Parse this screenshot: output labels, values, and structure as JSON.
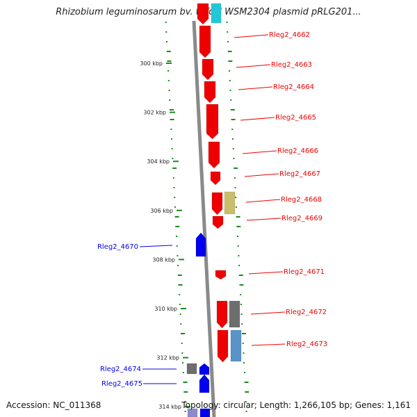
{
  "title": "Rhizobium leguminosarum bv. trifolii WSM2304 plasmid pRLG201...",
  "accession": "Accession: NC_011368",
  "summary": "Topology: circular; Length: 1,266,105 bp; Genes: 1,161",
  "colors": {
    "forward_gene": "#ee0000",
    "reverse_gene": "#0000ee",
    "backbone": "#8a8a8a",
    "gc_dots": "#1a8a1a",
    "olive": "#c9be6c",
    "gray": "#6e6e6e",
    "steelblue": "#5a93c8",
    "cyan": "#22c8d8"
  },
  "ticks": [
    {
      "label": "300 kbp",
      "kbp": 300
    },
    {
      "label": "302 kbp",
      "kbp": 302
    },
    {
      "label": "304 kbp",
      "kbp": 304
    },
    {
      "label": "306 kbp",
      "kbp": 306
    },
    {
      "label": "308 kbp",
      "kbp": 308
    },
    {
      "label": "310 kbp",
      "kbp": 310
    },
    {
      "label": "312 kbp",
      "kbp": 312
    },
    {
      "label": "314 kbp",
      "kbp": 314
    }
  ],
  "labels": [
    {
      "name": "Rleg2_4662",
      "strand": "forward"
    },
    {
      "name": "Rleg2_4663",
      "strand": "forward"
    },
    {
      "name": "Rleg2_4664",
      "strand": "forward"
    },
    {
      "name": "Rleg2_4665",
      "strand": "forward"
    },
    {
      "name": "Rleg2_4666",
      "strand": "forward"
    },
    {
      "name": "Rleg2_4667",
      "strand": "forward"
    },
    {
      "name": "Rleg2_4668",
      "strand": "forward"
    },
    {
      "name": "Rleg2_4669",
      "strand": "forward"
    },
    {
      "name": "Rleg2_4670",
      "strand": "reverse"
    },
    {
      "name": "Rleg2_4671",
      "strand": "forward"
    },
    {
      "name": "Rleg2_4672",
      "strand": "forward"
    },
    {
      "name": "Rleg2_4673",
      "strand": "forward"
    },
    {
      "name": "Rleg2_4674",
      "strand": "reverse"
    },
    {
      "name": "Rleg2_4675",
      "strand": "reverse"
    }
  ]
}
